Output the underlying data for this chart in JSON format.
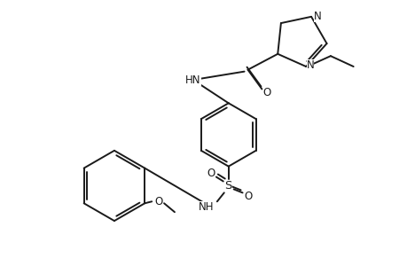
{
  "bg_color": "#ffffff",
  "line_color": "#1a1a1a",
  "line_width": 1.4,
  "font_size": 8.5,
  "figsize": [
    4.6,
    3.0
  ],
  "dpi": 100,
  "xlim": [
    0,
    460
  ],
  "ylim": [
    0,
    300
  ]
}
